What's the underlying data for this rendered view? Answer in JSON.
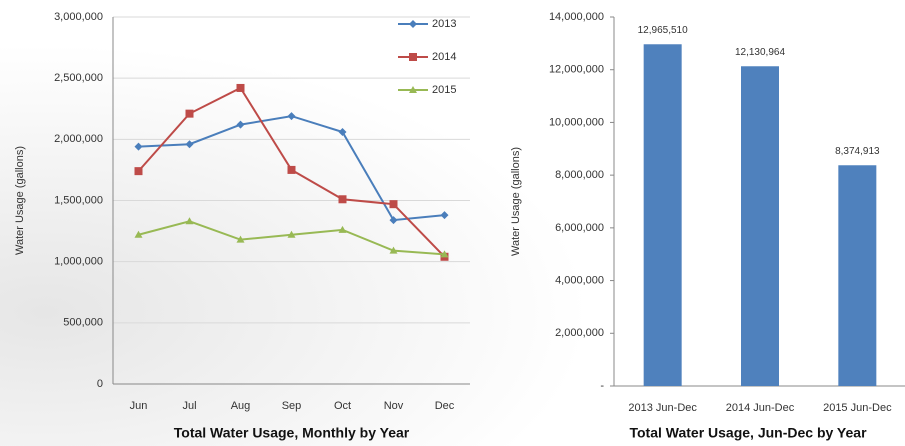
{
  "chart_data": [
    {
      "type": "line",
      "title": "Total Water Usage, Monthly by Year",
      "y_label": "Water Usage (gallons)",
      "categories": [
        "Jun",
        "Jul",
        "Aug",
        "Sep",
        "Oct",
        "Nov",
        "Dec"
      ],
      "series": [
        {
          "name": "2013",
          "color": "#4a7ebb",
          "marker": "diamond",
          "values": [
            1940000,
            1960000,
            2120000,
            2190000,
            2060000,
            1340000,
            1380000
          ]
        },
        {
          "name": "2014",
          "color": "#be4b48",
          "marker": "square",
          "values": [
            1740000,
            2210000,
            2420000,
            1750000,
            1510000,
            1470000,
            1040000
          ]
        },
        {
          "name": "2015",
          "color": "#98b954",
          "marker": "triangle",
          "values": [
            1220000,
            1330000,
            1180000,
            1220000,
            1260000,
            1090000,
            1060000
          ]
        }
      ],
      "ylim": [
        0,
        3000000
      ],
      "yticks": [
        0,
        {
          "value": 500000,
          "label": "500,000"
        },
        {
          "value": 1000000,
          "label": "1,000,000"
        },
        {
          "value": 1500000,
          "label": "1,500,000"
        },
        {
          "value": 2000000,
          "label": "2,000,000"
        },
        {
          "value": 2500000,
          "label": "2,500,000"
        },
        {
          "value": 3000000,
          "label": "3,000,000"
        }
      ],
      "grid": true,
      "legend": "top-right"
    },
    {
      "type": "bar",
      "title": "Total Water Usage, Jun-Dec by Year",
      "y_label": "Water Usage (gallons)",
      "categories": [
        "2013 Jun-Dec",
        "2014 Jun-Dec",
        "2015 Jun-Dec"
      ],
      "values": [
        12965510,
        12130964,
        8374913
      ],
      "value_labels": [
        "12,965,510",
        "12,130,964",
        "8,374,913"
      ],
      "color": "#4f81bd",
      "ylim": [
        0,
        14000000
      ],
      "yticks": [
        {
          "value": 0,
          "label": "-"
        },
        {
          "value": 2000000,
          "label": "2,000,000"
        },
        {
          "value": 4000000,
          "label": "4,000,000"
        },
        {
          "value": 6000000,
          "label": "6,000,000"
        },
        {
          "value": 8000000,
          "label": "8,000,000"
        },
        {
          "value": 10000000,
          "label": "10,000,000"
        },
        {
          "value": 12000000,
          "label": "12,000,000"
        },
        {
          "value": 14000000,
          "label": "14,000,000"
        }
      ],
      "grid": false
    }
  ]
}
